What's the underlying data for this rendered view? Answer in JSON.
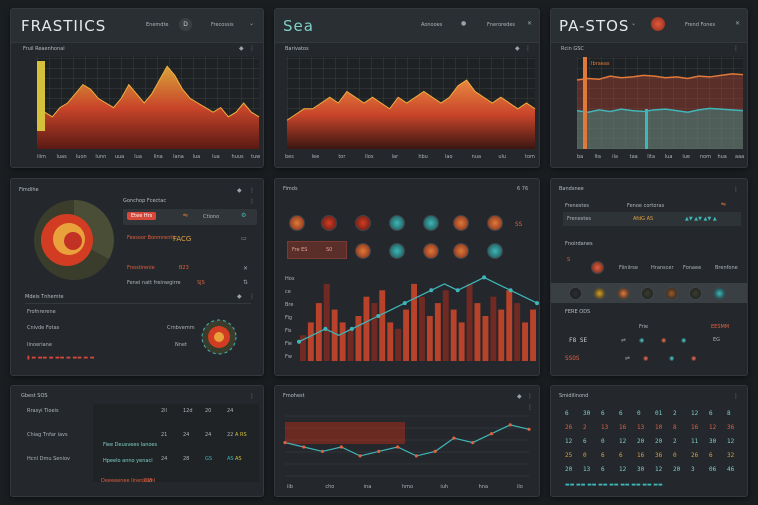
{
  "colors": {
    "bg": "#1b1e21",
    "panel": "#24282c",
    "red": "#d8452c",
    "orange": "#e07a3a",
    "yellow": "#d6b43a",
    "teal": "#3fb6b8"
  },
  "p1": {
    "title": "FRASTIICS",
    "header_link1": "Enemdte",
    "header_btn": "D",
    "header_link2": "Frecossis",
    "header_icon": "chevron-icon",
    "sub": "Fruil Reaenhonal",
    "ticks": [
      "iiim",
      "luas",
      "luon",
      "lunn",
      "uua",
      "lua",
      "lina",
      "lana",
      "lua",
      "lua",
      "huus",
      "tuw"
    ],
    "chart_data": {
      "type": "area",
      "series": [
        {
          "values": [
            6,
            8,
            7,
            9,
            10,
            12,
            14,
            13,
            11,
            10,
            9,
            11,
            14,
            12,
            10,
            12,
            15,
            18,
            16,
            13,
            11,
            10,
            9,
            8,
            9,
            7,
            8,
            10,
            8,
            7
          ]
        }
      ],
      "ylim": [
        0,
        20
      ]
    }
  },
  "p2": {
    "title": "Sea",
    "header_link1": "Aonooes",
    "header_btn": "D",
    "header_link2": "Fneroredes",
    "sub": "Barivatos",
    "ticks": [
      "bes",
      "lee",
      "tor",
      "ilos",
      "lar",
      "hbu",
      "lao",
      "nua",
      "ulu",
      "tom"
    ],
    "chart_data": {
      "type": "area",
      "series": [
        {
          "values": [
            5,
            6,
            7,
            7,
            8,
            9,
            8,
            10,
            9,
            8,
            9,
            8,
            7,
            9,
            8,
            9,
            10,
            9,
            8,
            9,
            11,
            12,
            10,
            9,
            8,
            9,
            8,
            7,
            8,
            7
          ]
        }
      ],
      "ylim": [
        0,
        16
      ]
    }
  },
  "p3": {
    "title": "PA-STOS",
    "header_link": "Frend Fones",
    "sub": "Rcin GSC",
    "legend": "Ibraeas",
    "ticks": [
      "ba",
      "lta",
      "ila",
      "taa",
      "lita",
      "lua",
      "iue",
      "nom",
      "hua",
      "aaa"
    ],
    "chart_data": {
      "type": "line",
      "series": [
        {
          "values": [
            9,
            9.2,
            9.1,
            9.5,
            9.3,
            9.4,
            9.6,
            9.5,
            9.3,
            9.4,
            9.2,
            9.5,
            9.4,
            9.6,
            9.8,
            9.7
          ]
        },
        {
          "values": [
            5,
            4.8,
            5.1,
            4.9,
            5.2,
            5.0,
            4.9,
            5.1,
            5.2,
            5.0,
            4.8,
            5.1,
            5.3,
            5.2,
            5.1,
            5.0
          ]
        }
      ],
      "ylim": [
        0,
        12
      ]
    }
  },
  "p4": {
    "title": "Fimdihe",
    "right_title": "Gonchop Fcectac",
    "row1_btn": "Etee Hrs",
    "row1_val": "Ctiono",
    "row2_label": "Fessoor Bonmrentt",
    "row2_val": "FACG",
    "row3_label": "Fnostirenie",
    "row3_val": "B23",
    "row4_label": "Fenei natt freinwgirre",
    "row4_val": "SJS",
    "section2": "Mdeis Tnhemte",
    "section2_sub": "Frofnrerene",
    "row5_label": "Cnivde Fotas",
    "row5_val": "Crnbvemm",
    "row6_label": "Iinoeriane",
    "row6_val": "Nnet",
    "donut_data": [
      35,
      30,
      20,
      15
    ]
  },
  "p5": {
    "title": "Fimds",
    "header_icons": "6 76",
    "sel_label": "Fre ES",
    "sel_val": "S0",
    "val_right": "SS",
    "sub2": "Hos",
    "ylabels": [
      "ce",
      "Bre",
      "Fig",
      "Fis",
      "Fie",
      "Fw"
    ],
    "chart_data": {
      "type": "bar",
      "values": [
        4,
        6,
        9,
        12,
        8,
        6,
        5,
        7,
        10,
        9,
        11,
        6,
        5,
        8,
        12,
        10,
        7,
        9,
        11,
        8,
        6,
        12,
        9,
        7,
        10,
        8,
        11,
        9,
        6,
        8
      ],
      "line": [
        3,
        4,
        5,
        4,
        5,
        6,
        7,
        8,
        9,
        10,
        11,
        12,
        11,
        12,
        13,
        12,
        11,
        10,
        9
      ],
      "ylim": [
        0,
        14
      ]
    }
  },
  "p6": {
    "title": "Bandsnee",
    "row1_label": "Frenestes",
    "row1_val": "Fenoe cortoras",
    "row1_nums": "AfdG AS",
    "section": "Fnoirdanes",
    "row3_left": "S",
    "row3_labels": [
      "Fiiniirse",
      "Hranscer",
      "Fonaee",
      "Brenfone"
    ],
    "section2": "FERE ODS",
    "section2_right": "EESMM",
    "row5_label": "Frie",
    "row5_nums": "F8 SE",
    "row5_val": "EG",
    "row6_val": "SSOS"
  },
  "p7": {
    "title": "Gbest SOS",
    "rows": [
      {
        "label": "Rrasyi Tioeis",
        "nums": [
          "2ll",
          "12d",
          "20",
          "24"
        ],
        "val": ""
      },
      {
        "label": "Chiag Tnfar iavs",
        "nums": [
          "21",
          "24",
          "24",
          "22"
        ],
        "val": "A RS"
      },
      {
        "label": "Hcnl Dmu Seniov",
        "nums": [
          "24",
          "28",
          "GS",
          "AS"
        ],
        "val": "AS"
      }
    ],
    "mid_labels": [
      "Fiee Deusvees Ianoes",
      "Hpeelo anno yenaci"
    ],
    "link": "Deeeeenee Iinensianl",
    "link_val": "205"
  },
  "p8": {
    "title": "Fmohest",
    "ticks": [
      "iib",
      "cho",
      "ina",
      "hmo",
      "iuh",
      "hna",
      "ilo"
    ],
    "chart_data": {
      "type": "line",
      "values": [
        8,
        7,
        6,
        7,
        5,
        6,
        7,
        5,
        6,
        9,
        8,
        10,
        12,
        11
      ],
      "ylim": [
        0,
        14
      ]
    }
  },
  "p9": {
    "title": "Smidilinond",
    "grid": [
      [
        "6",
        "30",
        "6",
        "6",
        "0",
        "01",
        "2",
        "12",
        "6",
        "8"
      ],
      [
        "26",
        "2",
        "13",
        "16",
        "13",
        "10",
        "8",
        "16",
        "12",
        "36"
      ],
      [
        "12",
        "6",
        "0",
        "12",
        "20",
        "20",
        "2",
        "11",
        "30",
        "12"
      ],
      [
        "25",
        "0",
        "6",
        "6",
        "16",
        "36",
        "0",
        "26",
        "6",
        "32"
      ],
      [
        "20",
        "13",
        "6",
        "12",
        "30",
        "12",
        "20",
        "3",
        "06",
        "46"
      ]
    ]
  }
}
